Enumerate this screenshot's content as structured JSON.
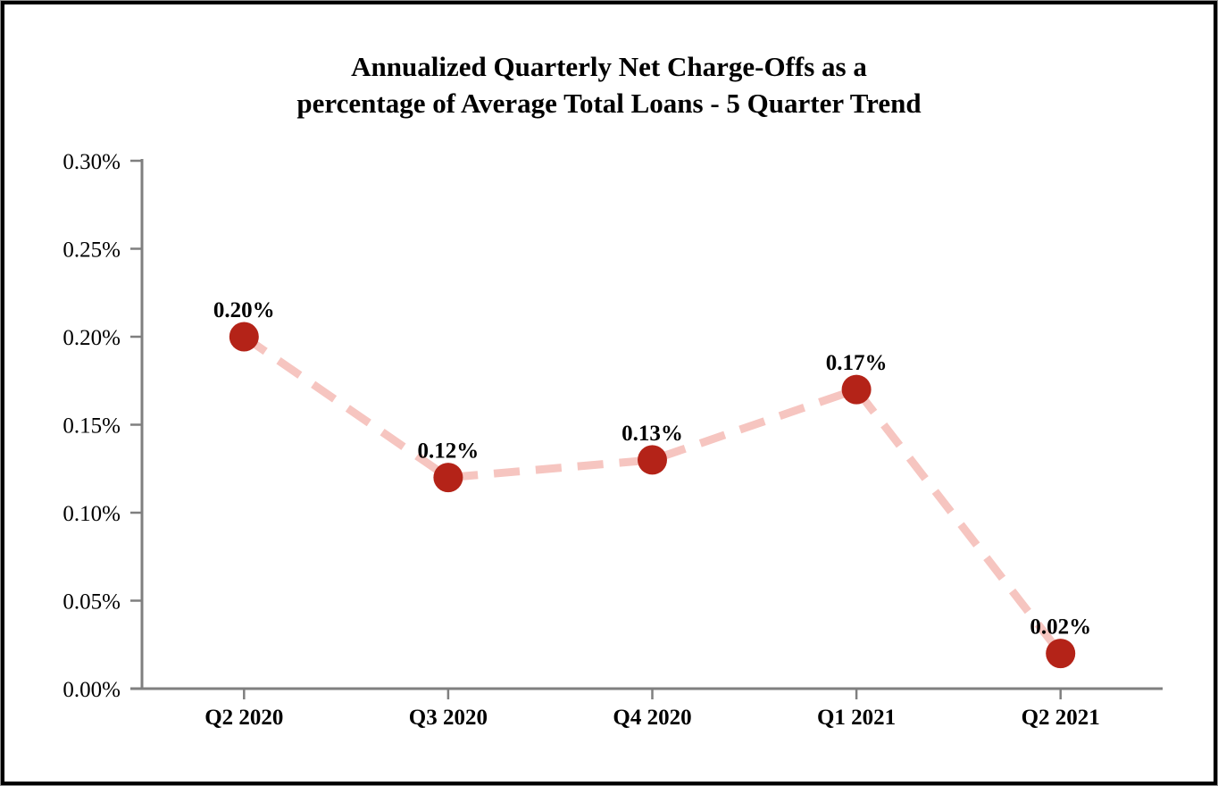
{
  "page": {
    "background": "#FFFFFF",
    "frame_border_color": "#000000"
  },
  "chart_data": {
    "type": "line",
    "title": "Annualized Quarterly Net Charge-Offs as a percentage of Average Total Loans - 5 Quarter Trend",
    "title_lines": [
      "Annualized Quarterly Net Charge-Offs as a",
      "percentage of Average Total Loans - 5 Quarter Trend"
    ],
    "categories": [
      "Q2 2020",
      "Q3 2020",
      "Q4 2020",
      "Q1 2021",
      "Q2 2021"
    ],
    "values": [
      0.2,
      0.12,
      0.13,
      0.17,
      0.02
    ],
    "point_labels": [
      "0.20%",
      "0.12%",
      "0.13%",
      "0.17%",
      "0.02%"
    ],
    "xlabel": "",
    "ylabel": "",
    "ylim": [
      0,
      0.3
    ],
    "ytick_step": 0.05,
    "ytick_labels": [
      "0.00%",
      "0.05%",
      "0.10%",
      "0.15%",
      "0.20%",
      "0.25%",
      "0.30%"
    ],
    "grid": false,
    "legend": "none",
    "line_style": "dashed",
    "marker_shape": "circle",
    "colors": {
      "marker": "#B42318",
      "line": "#F6C5C0",
      "axis": "#7F7F7F",
      "text": "#000000"
    }
  }
}
